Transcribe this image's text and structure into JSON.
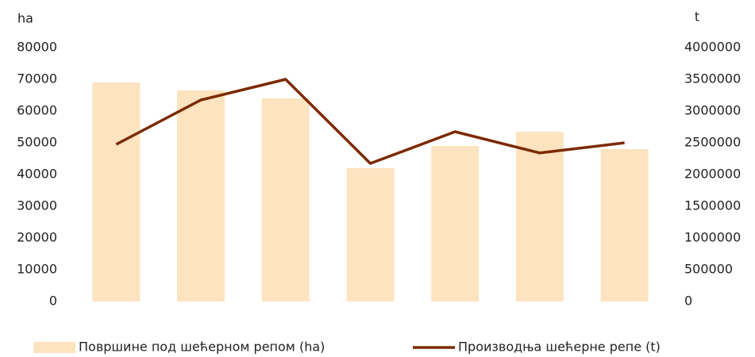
{
  "chart_data": {
    "type": "bar",
    "y_label": "ha",
    "y2_label": "t",
    "categories": [
      null,
      null,
      null,
      null,
      null,
      null,
      null
    ],
    "series": [
      {
        "name": "Површине под шећерном репом (ha)",
        "type": "bar",
        "color": "#fde3c0",
        "values": [
          69000,
          66500,
          64000,
          42000,
          49000,
          53500,
          48000
        ]
      },
      {
        "name": "Производња шећерне репе (t)",
        "type": "line",
        "axis": "y2",
        "color": "#7b2a00",
        "values": [
          2475000,
          3175000,
          3500000,
          2175000,
          2675000,
          2340000,
          2500000
        ]
      }
    ],
    "ylim": [
      0,
      80000
    ],
    "yticks": [
      0,
      10000,
      20000,
      30000,
      40000,
      50000,
      60000,
      70000,
      80000
    ],
    "y2lim": [
      0,
      4000000
    ],
    "y2ticks": [
      0,
      500000,
      1000000,
      1500000,
      2000000,
      2500000,
      3000000,
      3500000,
      4000000
    ],
    "grid": false,
    "legend": "bottom"
  }
}
